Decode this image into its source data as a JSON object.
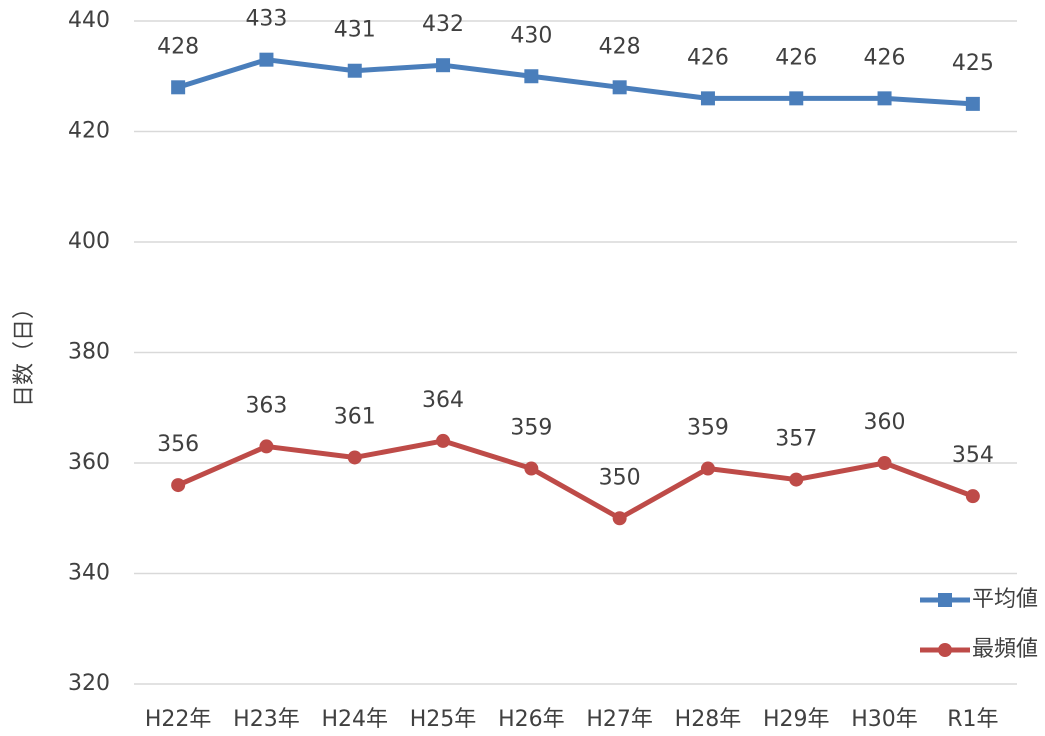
{
  "chart_data": {
    "type": "line",
    "y_label": "日数（日）",
    "categories": [
      "H22年",
      "H23年",
      "H24年",
      "H25年",
      "H26年",
      "H27年",
      "H28年",
      "H29年",
      "H30年",
      "R1年"
    ],
    "series": [
      {
        "name": "平均値",
        "color": "#4a7ebb",
        "marker": "square",
        "values": [
          428,
          433,
          431,
          432,
          430,
          428,
          426,
          426,
          426,
          425
        ]
      },
      {
        "name": "最頻値",
        "color": "#be4b48",
        "marker": "circle",
        "values": [
          356,
          363,
          361,
          364,
          359,
          350,
          359,
          357,
          360,
          354
        ]
      }
    ],
    "ylim": [
      320,
      440
    ],
    "yticks": [
      320,
      340,
      360,
      380,
      400,
      420,
      440
    ],
    "grid": true,
    "legend": "lower right",
    "data_labels": true
  }
}
